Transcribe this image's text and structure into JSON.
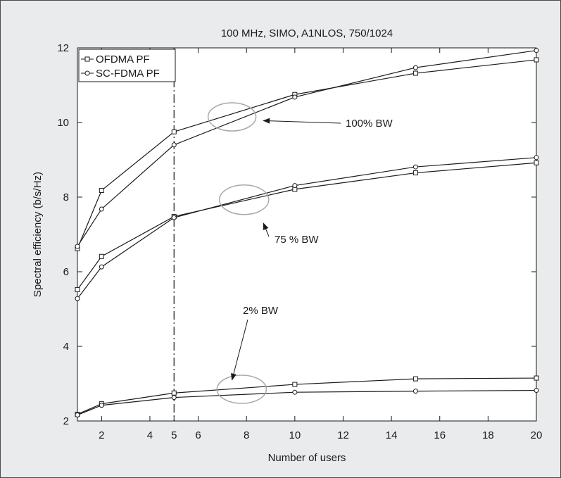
{
  "chart_data": {
    "type": "line",
    "title": "100 MHz, SIMO, A1NLOS, 750/1024",
    "xlabel": "Number of users",
    "ylabel": "Spectral efficiency (b/s/Hz)",
    "xlim": [
      1,
      20
    ],
    "ylim": [
      2,
      12
    ],
    "xticks": [
      2,
      4,
      5,
      6,
      8,
      10,
      12,
      14,
      16,
      18,
      20
    ],
    "yticks": [
      2,
      4,
      6,
      8,
      10,
      12
    ],
    "grid": false,
    "legend_position": "top-left",
    "legend": [
      {
        "name": "OFDMA PF",
        "marker": "square"
      },
      {
        "name": "SC-FDMA PF",
        "marker": "circle"
      }
    ],
    "vertical_line_x": 5,
    "series": [
      {
        "name": "OFDMA PF",
        "group": "100% BW",
        "marker": "square",
        "x": [
          1,
          2,
          5,
          10,
          15,
          20
        ],
        "values": [
          6.62,
          8.18,
          9.75,
          10.75,
          11.32,
          11.68
        ]
      },
      {
        "name": "SC-FDMA PF",
        "group": "100% BW",
        "marker": "circle",
        "x": [
          1,
          2,
          5,
          10,
          15,
          20
        ],
        "values": [
          6.68,
          7.68,
          9.4,
          10.68,
          11.47,
          11.93
        ]
      },
      {
        "name": "OFDMA PF",
        "group": "75 % BW",
        "marker": "square",
        "x": [
          1,
          2,
          5,
          10,
          15,
          20
        ],
        "values": [
          5.52,
          6.41,
          7.48,
          8.21,
          8.65,
          8.92
        ]
      },
      {
        "name": "SC-FDMA PF",
        "group": "75 % BW",
        "marker": "circle",
        "x": [
          1,
          2,
          5,
          10,
          15,
          20
        ],
        "values": [
          5.28,
          6.13,
          7.45,
          8.31,
          8.81,
          9.06
        ]
      },
      {
        "name": "OFDMA PF",
        "group": "2% BW",
        "marker": "square",
        "x": [
          1,
          2,
          5,
          10,
          15,
          20
        ],
        "values": [
          2.18,
          2.46,
          2.75,
          2.98,
          3.13,
          3.15
        ]
      },
      {
        "name": "SC-FDMA PF",
        "group": "2% BW",
        "marker": "circle",
        "x": [
          1,
          2,
          5,
          10,
          15,
          20
        ],
        "values": [
          2.16,
          2.42,
          2.63,
          2.77,
          2.8,
          2.82
        ]
      }
    ],
    "annotations": [
      {
        "text": "100% BW",
        "ellipse_center": [
          7.4,
          10.15
        ],
        "arrow_tip": [
          8.7,
          10.05
        ]
      },
      {
        "text": "75 % BW",
        "ellipse_center": [
          7.9,
          7.93
        ],
        "arrow_tip": [
          8.7,
          7.3
        ]
      },
      {
        "text": "2% BW",
        "ellipse_center": [
          7.8,
          2.85
        ],
        "arrow_tip": [
          7.4,
          3.1
        ]
      }
    ]
  }
}
